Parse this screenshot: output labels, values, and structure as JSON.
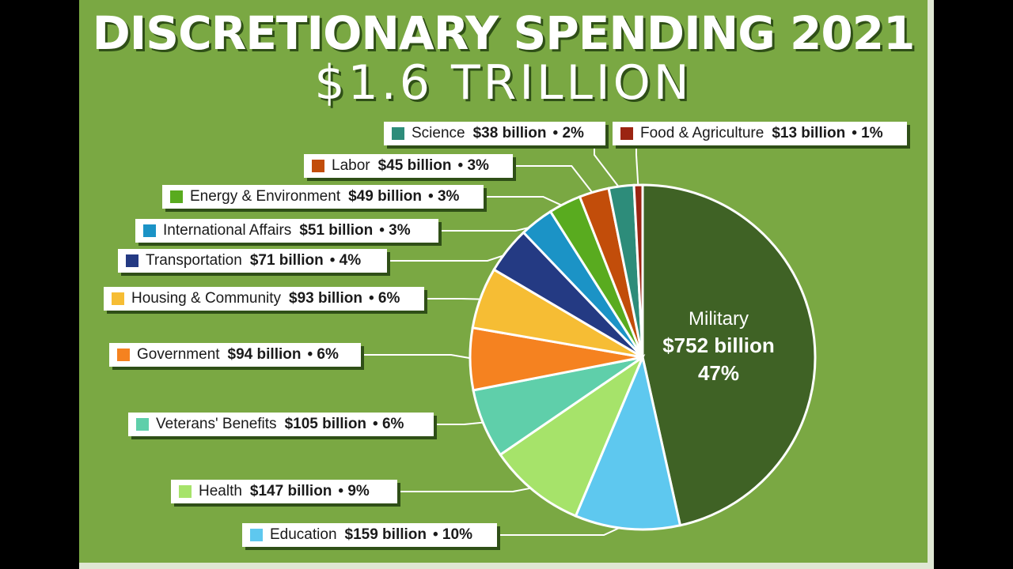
{
  "chart_data": {
    "type": "pie",
    "title": "DISCRETIONARY SPENDING 2021",
    "subtitle": "$1.6 TRILLION",
    "slices": [
      {
        "name": "Military",
        "value": 752,
        "value_label": "$752 billion",
        "percent_label": "47%",
        "color": "#3f6225"
      },
      {
        "name": "Education",
        "value": 159,
        "value_label": "$159 billion",
        "percent_label": "10%",
        "color": "#5ec8ef"
      },
      {
        "name": "Health",
        "value": 147,
        "value_label": "$147 billion",
        "percent_label": "9%",
        "color": "#a6e36a"
      },
      {
        "name": "Veterans' Benefits",
        "value": 105,
        "value_label": "$105 billion",
        "percent_label": "6%",
        "color": "#5fcfaa"
      },
      {
        "name": "Government",
        "value": 94,
        "value_label": "$94 billion",
        "percent_label": "6%",
        "color": "#f58220"
      },
      {
        "name": "Housing & Community",
        "value": 93,
        "value_label": "$93 billion",
        "percent_label": "6%",
        "color": "#f6bd34"
      },
      {
        "name": "Transportation",
        "value": 71,
        "value_label": "$71 billion",
        "percent_label": "4%",
        "color": "#243a83"
      },
      {
        "name": "International Affairs",
        "value": 51,
        "value_label": "$51 billion",
        "percent_label": "3%",
        "color": "#1b93c6"
      },
      {
        "name": "Energy & Environment",
        "value": 49,
        "value_label": "$49 billion",
        "percent_label": "3%",
        "color": "#59ab1f"
      },
      {
        "name": "Labor",
        "value": 45,
        "value_label": "$45 billion",
        "percent_label": "3%",
        "color": "#c24d0a"
      },
      {
        "name": "Science",
        "value": 38,
        "value_label": "$38 billion",
        "percent_label": "2%",
        "color": "#2d8c7a"
      },
      {
        "name": "Food & Agriculture",
        "value": 13,
        "value_label": "$13 billion",
        "percent_label": "1%",
        "color": "#9b2412"
      }
    ]
  }
}
